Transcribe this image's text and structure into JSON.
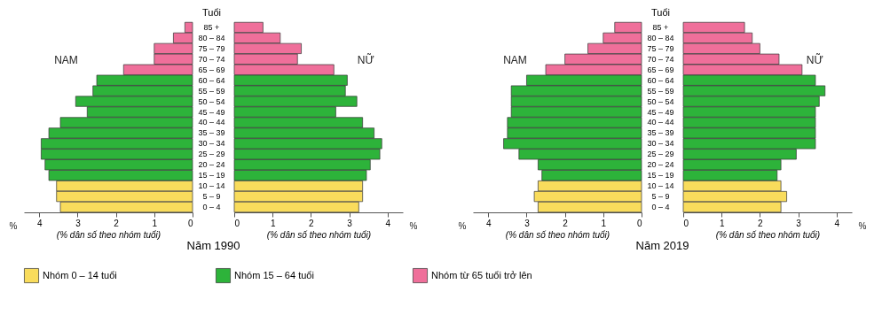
{
  "chart_data": [
    {
      "type": "bar",
      "orientation": "horizontal",
      "title": "Năm 1990",
      "xlabel": "(% dân số theo nhóm tuổi)",
      "annotations": [
        "NAM",
        "%"
      ],
      "categories": [
        "85 +",
        "80 – 84",
        "75 – 79",
        "70 – 74",
        "65 – 69",
        "60 – 64",
        "55 – 59",
        "50 – 54",
        "45 – 49",
        "40 – 44",
        "35 – 39",
        "30 – 34",
        "25 – 29",
        "20 – 24",
        "15 – 19",
        "10 – 14",
        "5 – 9",
        "0 – 4"
      ],
      "series": [
        {
          "name": "Nhóm 0 – 14 tuổi",
          "color": "#f9dc5c",
          "values": [
            null,
            null,
            null,
            null,
            null,
            null,
            null,
            null,
            null,
            null,
            null,
            null,
            null,
            null,
            null,
            3.55,
            3.55,
            3.45
          ]
        },
        {
          "name": "Nhóm 15 – 64 tuổi",
          "color": "#2db33a",
          "values": [
            null,
            null,
            null,
            null,
            null,
            2.5,
            2.6,
            3.05,
            2.75,
            3.45,
            3.75,
            3.95,
            3.95,
            3.85,
            3.75,
            null,
            null,
            null
          ]
        },
        {
          "name": "Nhóm từ 65 tuổi trở lên",
          "color": "#ef6f9a",
          "values": [
            0.2,
            0.5,
            1.0,
            1.0,
            1.8,
            null,
            null,
            null,
            null,
            null,
            null,
            null,
            null,
            null,
            null,
            null,
            null,
            null
          ]
        }
      ],
      "xlim": [
        4.4,
        0
      ],
      "xticks": [
        4,
        3,
        2,
        1,
        0
      ],
      "tick_labels": "x",
      "legend": "bottom",
      "grid": false
    },
    {
      "type": "bar",
      "orientation": "horizontal",
      "xlabel": "(% dân số theo nhóm tuổi)",
      "ylabel": "Tuổi",
      "annotations": [
        "NỮ",
        "%"
      ],
      "categories": [
        "85 +",
        "80 – 84",
        "75 – 79",
        "70 – 74",
        "65 – 69",
        "60 – 64",
        "55 – 59",
        "50 – 54",
        "45 – 49",
        "40 – 44",
        "35 – 39",
        "30 – 34",
        "25 – 29",
        "20 – 24",
        "15 – 19",
        "10 – 14",
        "5 – 9",
        "0 – 4"
      ],
      "series": [
        {
          "name": "Nhóm 0 – 14 tuổi",
          "color": "#f9dc5c",
          "values": [
            null,
            null,
            null,
            null,
            null,
            null,
            null,
            null,
            null,
            null,
            null,
            null,
            null,
            null,
            null,
            3.35,
            3.35,
            3.25
          ]
        },
        {
          "name": "Nhóm 15 – 64 tuổi",
          "color": "#2db33a",
          "values": [
            null,
            null,
            null,
            null,
            null,
            2.95,
            2.9,
            3.2,
            2.65,
            3.35,
            3.65,
            3.85,
            3.8,
            3.55,
            3.45,
            null,
            null,
            null
          ]
        },
        {
          "name": "Nhóm từ 65 tuổi trở lên",
          "color": "#ef6f9a",
          "values": [
            0.75,
            1.2,
            1.75,
            1.65,
            2.6,
            null,
            null,
            null,
            null,
            null,
            null,
            null,
            null,
            null,
            null,
            null,
            null,
            null
          ]
        }
      ],
      "xlim": [
        0,
        4.4
      ],
      "xticks": [
        0,
        1,
        2,
        3,
        4
      ],
      "legend": "bottom",
      "grid": false
    },
    {
      "type": "bar",
      "orientation": "horizontal",
      "title": "Năm 2019",
      "xlabel": "(% dân số theo nhóm tuổi)",
      "annotations": [
        "NAM",
        "%"
      ],
      "categories": [
        "85 +",
        "80 – 84",
        "75 – 79",
        "70 – 74",
        "65 – 69",
        "60 – 64",
        "55 – 59",
        "50 – 54",
        "45 – 49",
        "40 – 44",
        "35 – 39",
        "30 – 34",
        "25 – 29",
        "20 – 24",
        "15 – 19",
        "10 – 14",
        "5 – 9",
        "0 – 4"
      ],
      "series": [
        {
          "name": "Nhóm 0 – 14 tuổi",
          "color": "#f9dc5c",
          "values": [
            null,
            null,
            null,
            null,
            null,
            null,
            null,
            null,
            null,
            null,
            null,
            null,
            null,
            null,
            null,
            2.7,
            2.8,
            2.7
          ]
        },
        {
          "name": "Nhóm 15 – 64 tuổi",
          "color": "#2db33a",
          "values": [
            null,
            null,
            null,
            null,
            null,
            3.0,
            3.4,
            3.4,
            3.4,
            3.5,
            3.5,
            3.6,
            3.2,
            2.7,
            2.6,
            null,
            null,
            null
          ]
        },
        {
          "name": "Nhóm từ 65 tuổi trở lên",
          "color": "#ef6f9a",
          "values": [
            0.7,
            1.0,
            1.4,
            2.0,
            2.5,
            null,
            null,
            null,
            null,
            null,
            null,
            null,
            null,
            null,
            null,
            null,
            null,
            null
          ]
        }
      ],
      "xlim": [
        4.4,
        0
      ],
      "xticks": [
        4,
        3,
        2,
        1,
        0
      ],
      "tick_labels": "x",
      "legend": "bottom",
      "grid": false
    },
    {
      "type": "bar",
      "orientation": "horizontal",
      "xlabel": "(% dân số theo nhóm tuổi)",
      "ylabel": "Tuổi",
      "annotations": [
        "NỮ",
        "%"
      ],
      "categories": [
        "85 +",
        "80 – 84",
        "75 – 79",
        "70 – 74",
        "65 – 69",
        "60 – 64",
        "55 – 59",
        "50 – 54",
        "45 – 49",
        "40 – 44",
        "35 – 39",
        "30 – 34",
        "25 – 29",
        "20 – 24",
        "15 – 19",
        "10 – 14",
        "5 – 9",
        "0 – 4"
      ],
      "series": [
        {
          "name": "Nhóm 0 – 14 tuổi",
          "color": "#f9dc5c",
          "values": [
            null,
            null,
            null,
            null,
            null,
            null,
            null,
            null,
            null,
            null,
            null,
            null,
            null,
            null,
            null,
            2.55,
            2.7,
            2.55
          ]
        },
        {
          "name": "Nhóm 15 – 64 tuổi",
          "color": "#2db33a",
          "values": [
            null,
            null,
            null,
            null,
            null,
            3.45,
            3.7,
            3.55,
            3.45,
            3.45,
            3.45,
            3.45,
            2.95,
            2.55,
            2.45,
            null,
            null,
            null
          ]
        },
        {
          "name": "Nhóm từ 65 tuổi trở lên",
          "color": "#ef6f9a",
          "values": [
            1.6,
            1.8,
            2.0,
            2.5,
            3.1,
            null,
            null,
            null,
            null,
            null,
            null,
            null,
            null,
            null,
            null,
            null,
            null,
            null
          ]
        }
      ],
      "xlim": [
        0,
        4.4
      ],
      "xticks": [
        0,
        1,
        2,
        3,
        4
      ],
      "legend": "bottom",
      "grid": false
    }
  ]
}
